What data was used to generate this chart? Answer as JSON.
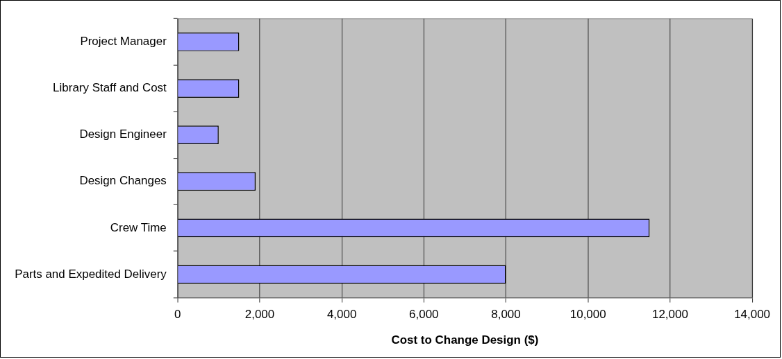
{
  "chart_data": {
    "type": "bar",
    "orientation": "horizontal",
    "categories": [
      "Project Manager",
      "Library Staff and Cost",
      "Design Engineer",
      "Design Changes",
      "Crew Time",
      "Parts and Expedited Delivery"
    ],
    "values": [
      1500,
      1500,
      1000,
      1900,
      11500,
      8000
    ],
    "color": "#9999ff",
    "xlabel": "Cost to Change Design ($)",
    "xlim": [
      0,
      14000
    ],
    "xticks": [
      0,
      {
        "value": 2000,
        "label": "2,000"
      },
      {
        "value": 4000,
        "label": "4,000"
      },
      {
        "value": 6000,
        "label": "6,000"
      },
      {
        "value": 8000,
        "label": "8,000"
      },
      {
        "value": 10000,
        "label": "10,000"
      },
      {
        "value": 12000,
        "label": "12,000"
      },
      {
        "value": 14000,
        "label": "14,000"
      }
    ],
    "grid": "x",
    "legend": false
  }
}
